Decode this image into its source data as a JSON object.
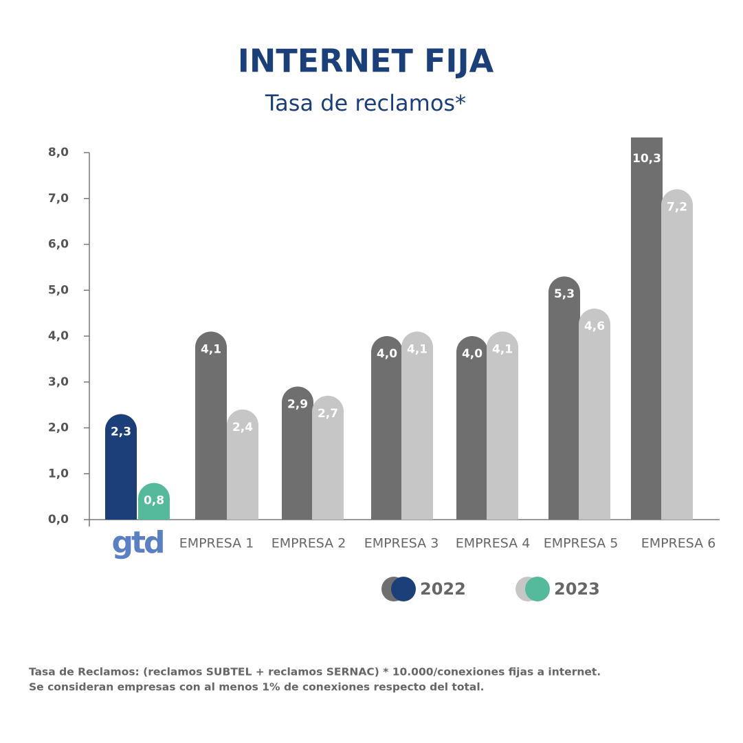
{
  "chart_data": {
    "type": "bar",
    "title": "INTERNET FIJA",
    "subtitle": "Tasa de reclamos*",
    "categories": [
      "gtd",
      "EMPRESA 1",
      "EMPRESA 2",
      "EMPRESA 3",
      "EMPRESA 4",
      "EMPRESA 5",
      "EMPRESA 6"
    ],
    "series": [
      {
        "name": "2022",
        "colors": [
          "#1b3f78",
          "#6f6f6f",
          "#6f6f6f",
          "#6f6f6f",
          "#6f6f6f",
          "#6f6f6f",
          "#6f6f6f"
        ],
        "values": [
          2.3,
          4.1,
          2.9,
          4.0,
          4.0,
          5.3,
          10.3
        ],
        "value_labels": [
          "2,3",
          "4,1",
          "2,9",
          "4,0",
          "4,0",
          "5,3",
          "10,3"
        ]
      },
      {
        "name": "2023",
        "colors": [
          "#55b99c",
          "#c6c6c6",
          "#c6c6c6",
          "#c6c6c6",
          "#c6c6c6",
          "#c6c6c6",
          "#c6c6c6"
        ],
        "values": [
          0.8,
          2.4,
          2.7,
          4.1,
          4.1,
          4.6,
          7.2
        ],
        "value_labels": [
          "0,8",
          "2,4",
          "2,7",
          "4,1",
          "4,1",
          "4,6",
          "7,2"
        ]
      }
    ],
    "ylim": [
      0,
      8
    ],
    "yticks": [
      {
        "value": 0,
        "label": "0,0"
      },
      {
        "value": 1,
        "label": "1,0"
      },
      {
        "value": 2,
        "label": "2,0"
      },
      {
        "value": 3,
        "label": "3,0"
      },
      {
        "value": 4,
        "label": "4,0"
      },
      {
        "value": 5,
        "label": "5,0"
      },
      {
        "value": 6,
        "label": "6,0"
      },
      {
        "value": 7,
        "label": "7,0"
      },
      {
        "value": 8,
        "label": "8,0"
      }
    ],
    "footnote": [
      "Tasa de Reclamos: (reclamos SUBTEL + reclamos SERNAC) * 10.000/conexiones fijas a internet.",
      "Se consideran empresas con al menos 1% de conexiones respecto del total."
    ]
  }
}
